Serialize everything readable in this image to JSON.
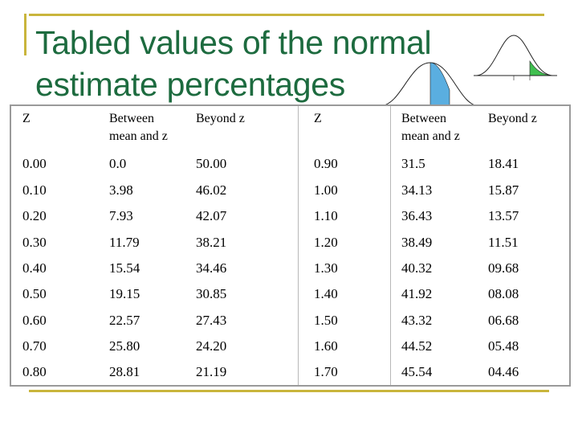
{
  "slide": {
    "title_line1": "Tabled values of the normal",
    "title_line2": "estimate percentages"
  },
  "table": {
    "headers": [
      "Z",
      "Between mean and z",
      "Beyond z",
      "Z",
      "Between mean and z",
      "Beyond z"
    ],
    "rows": [
      [
        "0.00",
        "0.0",
        "50.00",
        "0.90",
        "31.5",
        "18.41"
      ],
      [
        "0.10",
        "3.98",
        "46.02",
        "1.00",
        "34.13",
        "15.87"
      ],
      [
        "0.20",
        "7.93",
        "42.07",
        "1.10",
        "36.43",
        "13.57"
      ],
      [
        "0.30",
        "11.79",
        "38.21",
        "1.20",
        "38.49",
        "11.51"
      ],
      [
        "0.40",
        "15.54",
        "34.46",
        "1.30",
        "40.32",
        "09.68"
      ],
      [
        "0.50",
        "19.15",
        "30.85",
        "1.40",
        "41.92",
        "08.08"
      ],
      [
        "0.60",
        "22.57",
        "27.43",
        "1.50",
        "43.32",
        "06.68"
      ],
      [
        "0.70",
        "25.80",
        "24.20",
        "1.60",
        "44.52",
        "05.48"
      ],
      [
        "0.80",
        "28.81",
        "21.19",
        "1.70",
        "45.54",
        "04.46"
      ]
    ]
  },
  "colors": {
    "title": "#1d6b3f",
    "frame": "#c9b53c",
    "curve_fill_blue": "#5aaee0",
    "curve_fill_green": "#3fbf4f"
  }
}
